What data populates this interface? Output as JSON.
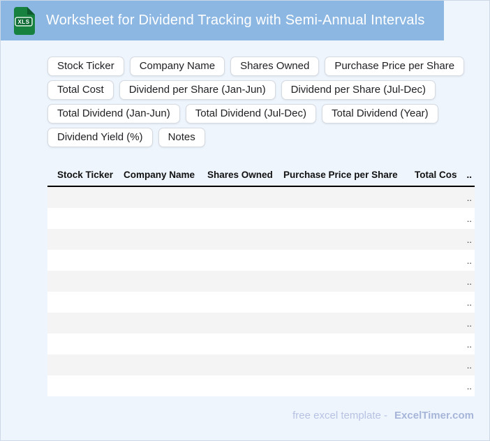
{
  "header": {
    "title": "Worksheet for Dividend Tracking with Semi-Annual Intervals",
    "icon_label": "XLS"
  },
  "chips": {
    "rows": [
      [
        "Stock Ticker",
        "Company Name",
        "Shares Owned",
        "Purchase Price per Share"
      ],
      [
        "Total Cost",
        "Dividend per Share (Jan-Jun)",
        "Dividend per Share (Jul-Dec)"
      ],
      [
        "Total Dividend (Jan-Jun)",
        "Total Dividend (Jul-Dec)",
        "Total Dividend (Year)"
      ],
      [
        "Dividend Yield (%)",
        "Notes"
      ]
    ]
  },
  "table": {
    "columns": [
      "Stock Ticker",
      "Company Name",
      "Shares Owned",
      "Purchase Price per Share",
      "Total Cost",
      ".."
    ],
    "row_count": 10,
    "row_overflow": "..",
    "cell_value": ""
  },
  "footer": {
    "text": "free excel template -",
    "brand": "ExcelTimer.com"
  },
  "colors": {
    "header_bg": "#8cb7e3",
    "page_bg": "#eef5fd",
    "page_border": "#cdd8e6",
    "chip_border": "#d6dae1",
    "chip_text": "#202124",
    "row_alt": "#f4f4f4",
    "header_rule": "#000000",
    "footer_text": "#b7c2e3",
    "footer_brand": "#a6b5d8",
    "icon_green": "#17813f",
    "icon_fold": "#0d5c2d",
    "icon_badge": "#0f6a34"
  }
}
